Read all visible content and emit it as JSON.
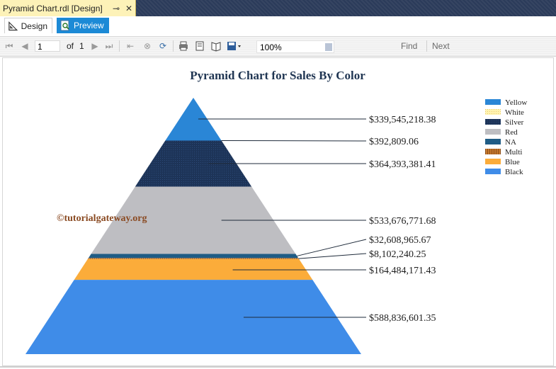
{
  "document_tab": {
    "title": "Pyramid Chart.rdl [Design]",
    "pin": "⊸",
    "close": "✕"
  },
  "modes": {
    "design_label": "Design",
    "preview_label": "Preview"
  },
  "toolbar": {
    "page": "1",
    "of_label": "of",
    "total_pages": "1",
    "zoom": "100%",
    "find_label": "Find",
    "next_label": "Next"
  },
  "watermark": "©tutorialgateway.org",
  "colors": {
    "accent": "#1c8ad6",
    "Yellow": "#2a86d6",
    "White": "#fff3b0",
    "Silver": "#1d3458",
    "Red": "#bebec2",
    "NA": "#1f5c85",
    "Multi": "#c77a2e",
    "Blue": "#fbac3a",
    "Black": "#3f8ce8"
  },
  "chart_data": {
    "type": "pyramid",
    "title": "Pyramid Chart for Sales By Color",
    "categories": [
      "Yellow",
      "White",
      "Silver",
      "Red",
      "NA",
      "Multi",
      "Blue",
      "Black"
    ],
    "values": [
      339545218.38,
      392809.06,
      364393381.41,
      533676771.68,
      32608965.67,
      8102240.25,
      164484171.43,
      588836601.35
    ],
    "labels": [
      "$339,545,218.38",
      "$392,809.06",
      "$364,393,381.41",
      "$533,676,771.68",
      "$32,608,965.67",
      "$8,102,240.25",
      "$164,484,171.43",
      "$588,836,601.35"
    ],
    "legend_position": "top-right"
  }
}
